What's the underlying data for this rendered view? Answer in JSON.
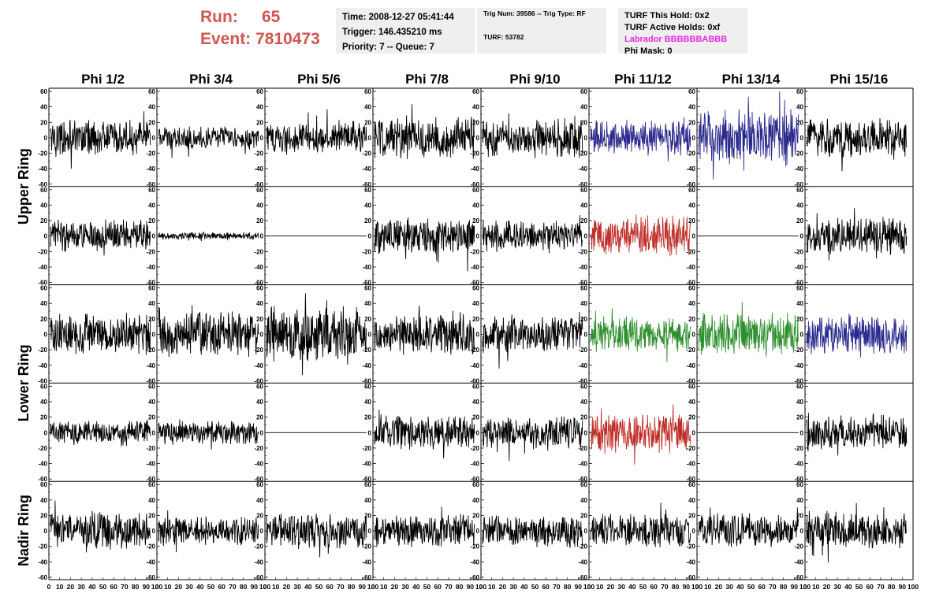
{
  "header": {
    "run_label": "Run:",
    "run_value": "65",
    "event_label": "Event:",
    "event_value": "7810473"
  },
  "info_box_1": {
    "time": "Time: 2008-12-27 05:41:44",
    "trigger": "Trigger: 146.435210 ms",
    "priority": "Priority: 7 -- Queue: 7"
  },
  "info_box_2": {
    "trig": "Trig Num: 39586 -- Trig Type: RF",
    "turf": "TURF: 53782"
  },
  "info_box_3": {
    "this_hold": "TURF This Hold: 0x2",
    "active_holds": "TURF Active Holds: 0xf",
    "labrador": "Labrador BBBBBBABBB",
    "phi_mask": "Phi Mask: 0"
  },
  "colors": {
    "run_text": "#d0574f",
    "labrador_text": "#e42ae4",
    "trace_default": "#000000",
    "trace_blue": "#2b2b8f",
    "trace_red": "#c0302a",
    "trace_green": "#2d8f2d",
    "info_box_bg": "#efefef"
  },
  "chart_data": {
    "type": "line",
    "columns": [
      "Phi 1/2",
      "Phi 3/4",
      "Phi 5/6",
      "Phi 7/8",
      "Phi 9/10",
      "Phi 11/12",
      "Phi 13/14",
      "Phi 15/16"
    ],
    "ring_labels": [
      "Upper Ring",
      "Lower Ring",
      "Nadir Ring"
    ],
    "rows": 5,
    "ylim": [
      -60,
      60
    ],
    "yticks": [
      "60",
      "40",
      "20",
      "0",
      "-20",
      "-40",
      "-60"
    ],
    "xlim": [
      0,
      100
    ],
    "xticks": [
      "0",
      "10",
      "20",
      "30",
      "40",
      "50",
      "60",
      "70",
      "80",
      "90",
      "100"
    ],
    "grid": false,
    "panels": [
      {
        "row": 0,
        "col": 0,
        "amplitude": 14,
        "color": "#000000"
      },
      {
        "row": 0,
        "col": 1,
        "amplitude": 9,
        "color": "#000000"
      },
      {
        "row": 0,
        "col": 2,
        "amplitude": 13,
        "color": "#000000"
      },
      {
        "row": 0,
        "col": 3,
        "amplitude": 18,
        "color": "#000000"
      },
      {
        "row": 0,
        "col": 4,
        "amplitude": 16,
        "color": "#000000"
      },
      {
        "row": 0,
        "col": 5,
        "amplitude": 14,
        "color": "#2b2b8f"
      },
      {
        "row": 0,
        "col": 6,
        "amplitude": 22,
        "color": "#2b2b8f"
      },
      {
        "row": 0,
        "col": 7,
        "amplitude": 15,
        "color": "#000000"
      },
      {
        "row": 1,
        "col": 0,
        "amplitude": 13,
        "color": "#000000"
      },
      {
        "row": 1,
        "col": 1,
        "amplitude": 3,
        "color": "#000000"
      },
      {
        "row": 1,
        "col": 2,
        "amplitude": 0,
        "color": "#000000"
      },
      {
        "row": 1,
        "col": 3,
        "amplitude": 15,
        "color": "#000000"
      },
      {
        "row": 1,
        "col": 4,
        "amplitude": 12,
        "color": "#000000"
      },
      {
        "row": 1,
        "col": 5,
        "amplitude": 16,
        "color": "#c0302a"
      },
      {
        "row": 1,
        "col": 6,
        "amplitude": 0,
        "color": "#000000"
      },
      {
        "row": 1,
        "col": 7,
        "amplitude": 15,
        "color": "#000000"
      },
      {
        "row": 2,
        "col": 0,
        "amplitude": 17,
        "color": "#000000"
      },
      {
        "row": 2,
        "col": 1,
        "amplitude": 18,
        "color": "#000000"
      },
      {
        "row": 2,
        "col": 2,
        "amplitude": 22,
        "color": "#000000"
      },
      {
        "row": 2,
        "col": 3,
        "amplitude": 17,
        "color": "#000000"
      },
      {
        "row": 2,
        "col": 4,
        "amplitude": 15,
        "color": "#000000"
      },
      {
        "row": 2,
        "col": 5,
        "amplitude": 14,
        "color": "#2d8f2d"
      },
      {
        "row": 2,
        "col": 6,
        "amplitude": 17,
        "color": "#2d8f2d"
      },
      {
        "row": 2,
        "col": 7,
        "amplitude": 15,
        "color": "#2b2b8f"
      },
      {
        "row": 3,
        "col": 0,
        "amplitude": 10,
        "color": "#000000"
      },
      {
        "row": 3,
        "col": 1,
        "amplitude": 10,
        "color": "#000000"
      },
      {
        "row": 3,
        "col": 2,
        "amplitude": 0,
        "color": "#000000"
      },
      {
        "row": 3,
        "col": 3,
        "amplitude": 14,
        "color": "#000000"
      },
      {
        "row": 3,
        "col": 4,
        "amplitude": 13,
        "color": "#000000"
      },
      {
        "row": 3,
        "col": 5,
        "amplitude": 16,
        "color": "#c0302a"
      },
      {
        "row": 3,
        "col": 6,
        "amplitude": 0,
        "color": "#000000"
      },
      {
        "row": 3,
        "col": 7,
        "amplitude": 14,
        "color": "#000000"
      },
      {
        "row": 4,
        "col": 0,
        "amplitude": 15,
        "color": "#000000"
      },
      {
        "row": 4,
        "col": 1,
        "amplitude": 12,
        "color": "#000000"
      },
      {
        "row": 4,
        "col": 2,
        "amplitude": 15,
        "color": "#000000"
      },
      {
        "row": 4,
        "col": 3,
        "amplitude": 13,
        "color": "#000000"
      },
      {
        "row": 4,
        "col": 4,
        "amplitude": 13,
        "color": "#000000"
      },
      {
        "row": 4,
        "col": 5,
        "amplitude": 13,
        "color": "#000000"
      },
      {
        "row": 4,
        "col": 6,
        "amplitude": 14,
        "color": "#000000"
      },
      {
        "row": 4,
        "col": 7,
        "amplitude": 15,
        "color": "#000000"
      }
    ]
  }
}
